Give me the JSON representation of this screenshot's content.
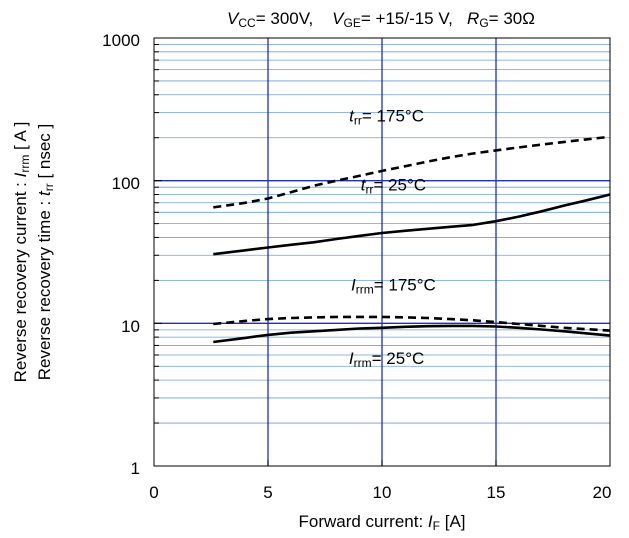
{
  "chart_data": {
    "type": "line",
    "title_parts": {
      "vcc_var": "V",
      "vcc_sub": "CC",
      "vcc_val": "= 300V,",
      "vge_var": "V",
      "vge_sub": "GE",
      "vge_val": "= +15/-15 V,",
      "rg_var": "R",
      "rg_sub": "G",
      "rg_val": "= 30Ω"
    },
    "xlabel": {
      "text": "Forward current: ",
      "var": "I",
      "sub": "F",
      "unit": " [A]"
    },
    "ylabel": {
      "line1": {
        "text": "Reverse recovery current  :  ",
        "var": "I",
        "sub": "rrm",
        "unit": "  [ A ]"
      },
      "line2": {
        "text": "Reverse recovery time  :  ",
        "var": "t",
        "sub": "rr",
        "unit": "  [ nsec ]"
      }
    },
    "xlim": [
      0,
      20
    ],
    "ylim": [
      1,
      1000
    ],
    "yscale": "log",
    "xticks": [
      "0",
      "5",
      "10",
      "15",
      "20"
    ],
    "yticks": [
      "1",
      "10",
      "100",
      "1000"
    ],
    "grid": true,
    "series": [
      {
        "var": "t",
        "sub": "rr",
        "suffix": "= 175°C",
        "style": "dashed",
        "label_x": 10.2,
        "label_y": 260,
        "x": [
          2.6,
          4,
          5,
          6,
          7,
          8,
          9,
          10,
          11,
          12,
          13,
          14,
          15,
          16,
          17,
          18,
          19,
          20
        ],
        "y": [
          65,
          70,
          75,
          83,
          92,
          100,
          108,
          117,
          126,
          136,
          146,
          155,
          163,
          171,
          179,
          187,
          195,
          203
        ]
      },
      {
        "var": "t",
        "sub": "rr",
        "suffix": "= 25°C",
        "style": "solid",
        "label_x": 10.5,
        "label_y": 85,
        "x": [
          2.6,
          4,
          5,
          6,
          7,
          8,
          9,
          10,
          11,
          12,
          13,
          14,
          15,
          16,
          17,
          18,
          19,
          20
        ],
        "y": [
          30.5,
          32.5,
          34,
          35.5,
          37,
          39,
          41,
          43,
          44.5,
          46,
          47.5,
          49,
          52,
          56,
          61,
          67,
          73,
          80
        ]
      },
      {
        "var": "I",
        "sub": "rrm",
        "suffix": "= 175°C",
        "style": "dashed",
        "label_x": 10.5,
        "label_y": 17,
        "x": [
          2.6,
          4,
          5,
          6,
          7,
          8,
          9,
          10,
          11,
          12,
          13,
          14,
          15,
          16,
          17,
          18,
          19,
          20
        ],
        "y": [
          9.9,
          10.4,
          10.7,
          10.9,
          11.0,
          11.1,
          11.1,
          11.1,
          11.0,
          10.9,
          10.7,
          10.5,
          10.2,
          9.9,
          9.6,
          9.3,
          9.1,
          8.9
        ]
      },
      {
        "var": "I",
        "sub": "rrm",
        "suffix": "= 25°C",
        "style": "solid",
        "label_x": 10.2,
        "label_y": 5.2,
        "x": [
          2.6,
          4,
          5,
          6,
          7,
          8,
          9,
          10,
          11,
          12,
          13,
          14,
          15,
          16,
          17,
          18,
          19,
          20
        ],
        "y": [
          7.4,
          7.9,
          8.3,
          8.6,
          8.8,
          9.0,
          9.2,
          9.3,
          9.45,
          9.55,
          9.6,
          9.6,
          9.5,
          9.3,
          9.05,
          8.8,
          8.5,
          8.2
        ]
      }
    ]
  }
}
